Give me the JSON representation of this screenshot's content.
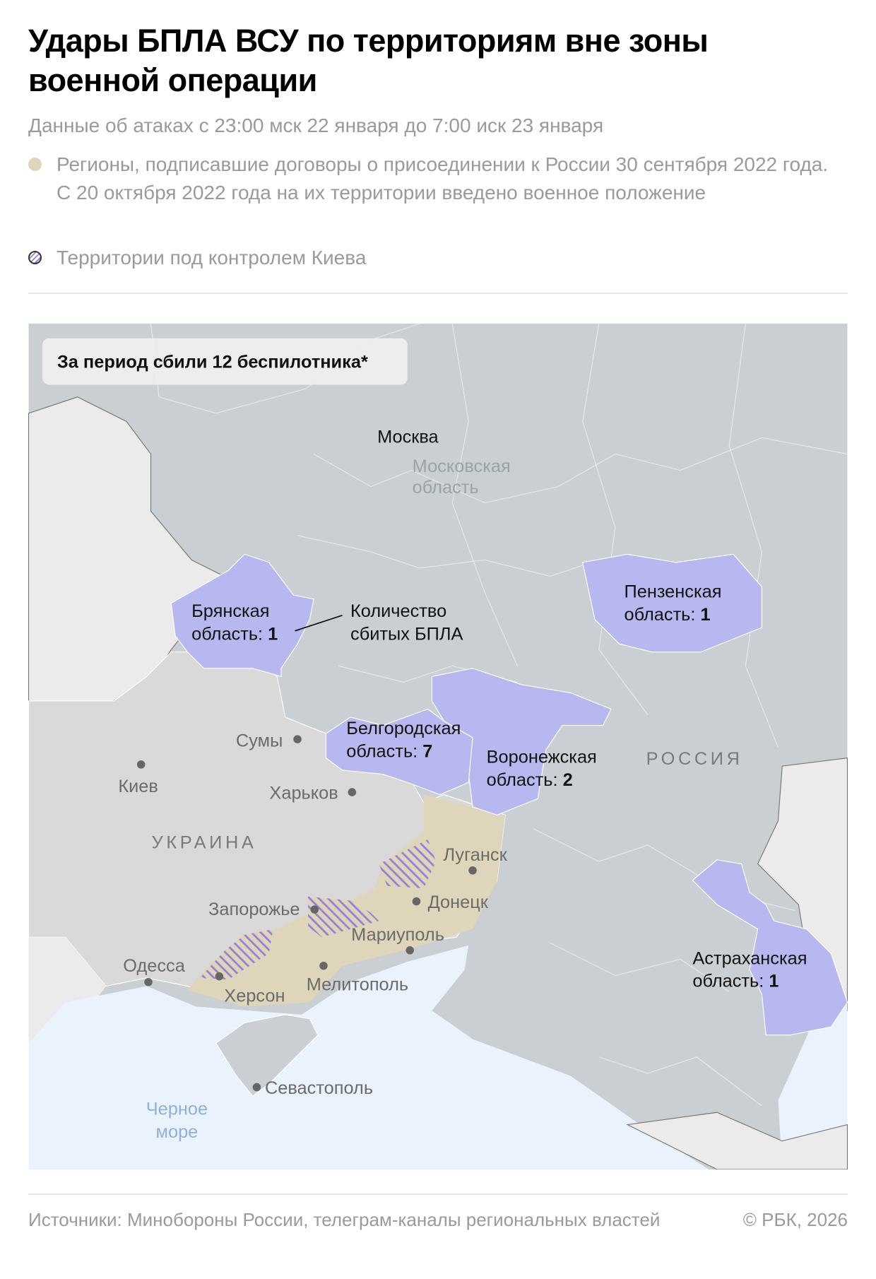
{
  "header": {
    "title": "Удары БПЛА ВСУ по территориям вне зоны военной операции",
    "subtitle": "Данные об атаках с 23:00 мск 22 января до 7:00 иск 23 января"
  },
  "legend": [
    {
      "swatch": "beige-circle",
      "color": "#ded5bb",
      "label": "Регионы, подписавшие договоры о присоединении к России 30 сентября 2022 года. С 20 октября 2022 года на их территории введено военное положение"
    },
    {
      "swatch": "hatched-circle",
      "color": "#9b7fd6",
      "label": "Территории под контролем Киева"
    }
  ],
  "map": {
    "total_box": "За период сбили 12 беспилотника*",
    "colors": {
      "russia": "#c9cfd3",
      "ukraine": "#d9d9d9",
      "other": "#ebebeb",
      "highlight": "#b8b8f0",
      "annexed": "#ded5bb",
      "sea": "#eaf3fd"
    },
    "annotation": {
      "line1": "Количество",
      "line2": "сбитых БПЛА"
    },
    "regions": [
      {
        "name": "Брянская",
        "line2": "область: ",
        "count": "1"
      },
      {
        "name": "Пензенская",
        "line2": "область: ",
        "count": "1"
      },
      {
        "name": "Белгородская",
        "line2": "область: ",
        "count": "7"
      },
      {
        "name": "Воронежская",
        "line2": "область: ",
        "count": "2"
      },
      {
        "name": "Астраханская",
        "line2": "область: ",
        "count": "1"
      }
    ],
    "countries": {
      "russia": "РОССИЯ",
      "ukraine": "УКРАИНА"
    },
    "moscow": "Москва",
    "moscow_oblast": {
      "line1": "Московская",
      "line2": "область"
    },
    "cities": {
      "sumy": "Сумы",
      "kiev": "Киев",
      "kharkov": "Харьков",
      "lugansk": "Луганск",
      "donetsk": "Донецк",
      "zaporozhye": "Запорожье",
      "mariupol": "Мариуполь",
      "odessa": "Одесса",
      "kherson": "Херсон",
      "melitopol": "Мелитополь",
      "sevastopol": "Севастополь"
    },
    "sea": {
      "line1": "Черное",
      "line2": "море"
    }
  },
  "footer": {
    "sources": "Источники: Минобороны России, телеграм-каналы региональных властей",
    "copyright": "© РБК, 2026"
  }
}
